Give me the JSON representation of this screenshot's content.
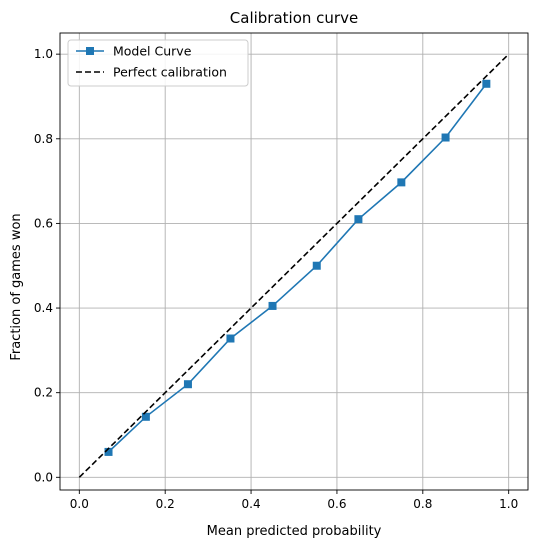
{
  "chart_data": {
    "type": "line",
    "title": "Calibration curve",
    "xlabel": "Mean predicted probability",
    "ylabel": "Fraction of games won",
    "xlim": [
      -0.045,
      1.045
    ],
    "ylim": [
      -0.03,
      1.05
    ],
    "xticks": [
      "0.0",
      "0.2",
      "0.4",
      "0.6",
      "0.8",
      "1.0"
    ],
    "yticks": [
      "0.0",
      "0.2",
      "0.4",
      "0.6",
      "0.8",
      "1.0"
    ],
    "grid": true,
    "legend_position": "top-left",
    "series": [
      {
        "name": "Model Curve",
        "color": "#1f77b4",
        "marker": "square",
        "line_style": "solid",
        "x": [
          0.068,
          0.155,
          0.253,
          0.352,
          0.45,
          0.553,
          0.65,
          0.75,
          0.853,
          0.948
        ],
        "y": [
          0.06,
          0.143,
          0.22,
          0.328,
          0.405,
          0.5,
          0.61,
          0.697,
          0.803,
          0.93
        ]
      },
      {
        "name": "Perfect calibration",
        "color": "#000000",
        "marker": "none",
        "line_style": "dashed",
        "x": [
          0,
          1
        ],
        "y": [
          0,
          1
        ]
      }
    ]
  }
}
